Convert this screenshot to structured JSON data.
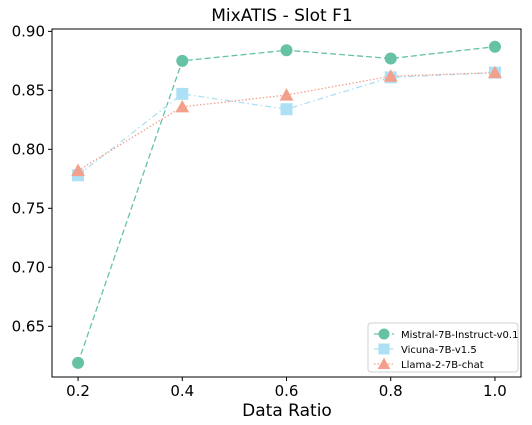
{
  "chart_data": {
    "type": "line",
    "title": "MixATIS - Slot F1",
    "xlabel": "Data Ratio",
    "ylabel": "",
    "x": [
      0.2,
      0.4,
      0.6,
      0.8,
      1.0
    ],
    "xticks": [
      "0.2",
      "0.4",
      "0.6",
      "0.8",
      "1.0"
    ],
    "yticks": [
      "0.65",
      "0.70",
      "0.75",
      "0.80",
      "0.85",
      "0.90"
    ],
    "ytick_values": [
      0.65,
      0.7,
      0.75,
      0.8,
      0.85,
      0.9
    ],
    "xlim": [
      0.15,
      1.05
    ],
    "ylim": [
      0.607,
      0.902
    ],
    "grid": false,
    "legend_position": "bottom-right",
    "series": [
      {
        "name": "Mistral-7B-Instruct-v0.1",
        "values": [
          0.619,
          0.875,
          0.884,
          0.877,
          0.887
        ],
        "color": "#66c2a5",
        "marker": "circle",
        "dash": "6,3"
      },
      {
        "name": "Vicuna-7B-v1.5",
        "values": [
          0.778,
          0.847,
          0.834,
          0.861,
          0.865
        ],
        "color": "#aee0f5",
        "marker": "square",
        "dash": "6,3,1.5,3"
      },
      {
        "name": "Llama-2-7B-chat",
        "values": [
          0.782,
          0.836,
          0.846,
          0.862,
          0.865
        ],
        "color": "#f2a08c",
        "marker": "triangle",
        "dash": "1.5,2"
      }
    ]
  }
}
